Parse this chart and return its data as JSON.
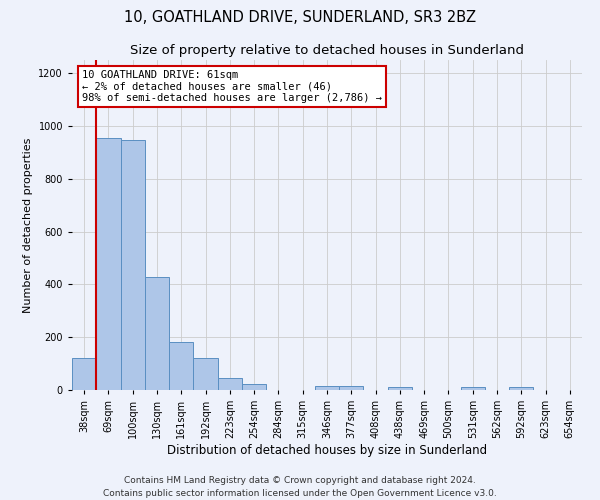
{
  "title1": "10, GOATHLAND DRIVE, SUNDERLAND, SR3 2BZ",
  "title2": "Size of property relative to detached houses in Sunderland",
  "xlabel": "Distribution of detached houses by size in Sunderland",
  "ylabel": "Number of detached properties",
  "categories": [
    "38sqm",
    "69sqm",
    "100sqm",
    "130sqm",
    "161sqm",
    "192sqm",
    "223sqm",
    "254sqm",
    "284sqm",
    "315sqm",
    "346sqm",
    "377sqm",
    "408sqm",
    "438sqm",
    "469sqm",
    "500sqm",
    "531sqm",
    "562sqm",
    "592sqm",
    "623sqm",
    "654sqm"
  ],
  "values": [
    120,
    955,
    948,
    428,
    183,
    120,
    44,
    21,
    0,
    0,
    16,
    17,
    0,
    10,
    0,
    0,
    10,
    0,
    10,
    0,
    0
  ],
  "bar_color": "#aec6e8",
  "bar_edge_color": "#5a8fc2",
  "annotation_box_text": "10 GOATHLAND DRIVE: 61sqm\n← 2% of detached houses are smaller (46)\n98% of semi-detached houses are larger (2,786) →",
  "annotation_box_color": "#ffffff",
  "annotation_box_edge": "#cc0000",
  "red_line_color": "#cc0000",
  "ylim": [
    0,
    1250
  ],
  "yticks": [
    0,
    200,
    400,
    600,
    800,
    1000,
    1200
  ],
  "footer": "Contains HM Land Registry data © Crown copyright and database right 2024.\nContains public sector information licensed under the Open Government Licence v3.0.",
  "bg_color": "#eef2fb",
  "grid_color": "#cccccc",
  "title1_fontsize": 10.5,
  "title2_fontsize": 9.5,
  "xlabel_fontsize": 8.5,
  "ylabel_fontsize": 8,
  "tick_fontsize": 7,
  "footer_fontsize": 6.5,
  "annot_fontsize": 7.5
}
